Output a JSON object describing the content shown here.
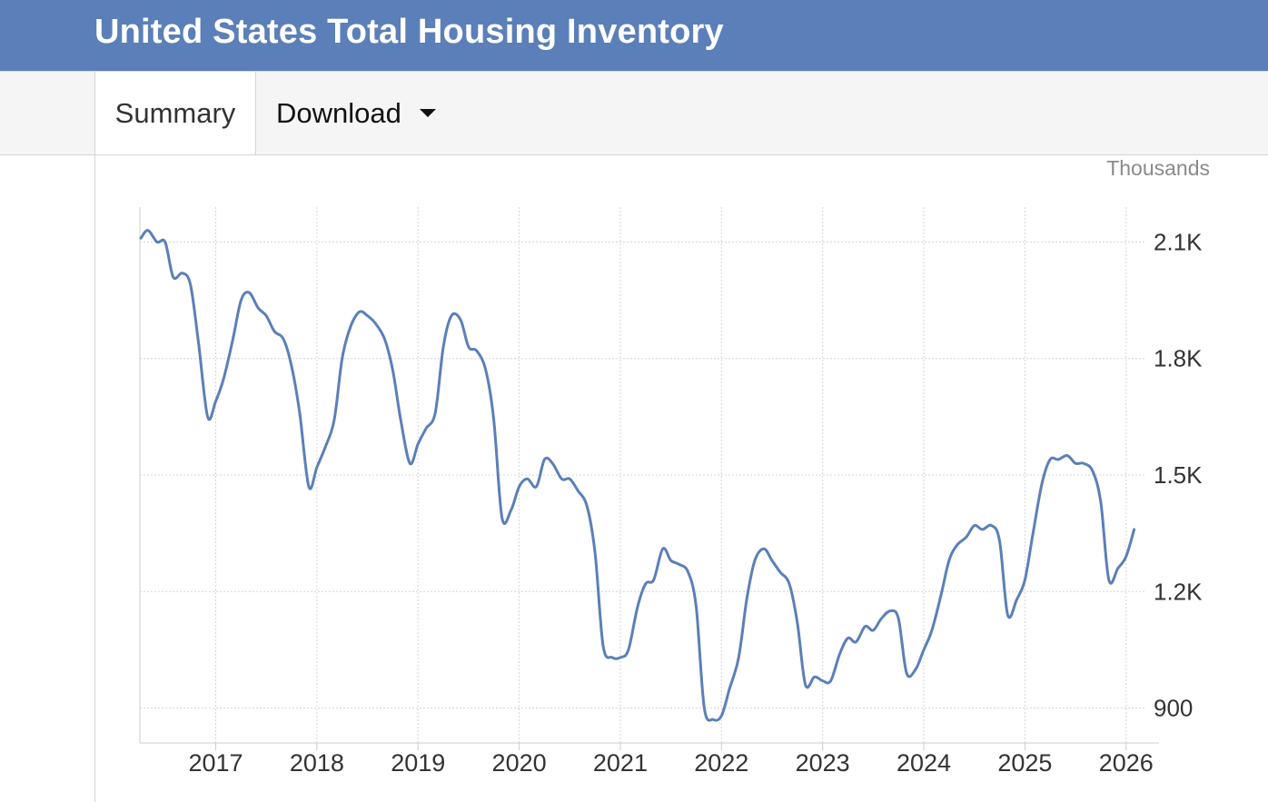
{
  "header": {
    "title": "United States Total Housing Inventory"
  },
  "tabs": {
    "summary_label": "Summary",
    "download_label": "Download"
  },
  "icons": {
    "download_caret": "caret-down-icon"
  },
  "colors": {
    "header_bg": "#5b7fb8",
    "series_line": "#5b7fb8"
  },
  "chart_data": {
    "type": "line",
    "unit_label": "Thousands",
    "y_tick_labels": [
      "2.1K",
      "1.8K",
      "1.5K",
      "1.2K",
      "900"
    ],
    "y_ticks": [
      2100,
      1800,
      1500,
      1200,
      900
    ],
    "x_tick_labels": [
      "2017",
      "2018",
      "2019",
      "2020",
      "2021",
      "2022",
      "2023",
      "2024",
      "2025",
      "2026"
    ],
    "x_ticks": [
      2017,
      2018,
      2019,
      2020,
      2021,
      2022,
      2023,
      2024,
      2025,
      2026
    ],
    "ylim": [
      810,
      2190
    ],
    "xlim": [
      2016.25,
      2026.2
    ],
    "grid": true,
    "series": [
      {
        "points": [
          [
            2016.26,
            2110
          ],
          [
            2016.33,
            2130
          ],
          [
            2016.42,
            2100
          ],
          [
            2016.5,
            2100
          ],
          [
            2016.58,
            2010
          ],
          [
            2016.67,
            2020
          ],
          [
            2016.75,
            1990
          ],
          [
            2016.83,
            1840
          ],
          [
            2016.92,
            1650
          ],
          [
            2017.0,
            1690
          ],
          [
            2017.08,
            1750
          ],
          [
            2017.17,
            1850
          ],
          [
            2017.25,
            1950
          ],
          [
            2017.33,
            1970
          ],
          [
            2017.42,
            1930
          ],
          [
            2017.5,
            1910
          ],
          [
            2017.58,
            1870
          ],
          [
            2017.67,
            1850
          ],
          [
            2017.75,
            1780
          ],
          [
            2017.83,
            1660
          ],
          [
            2017.92,
            1470
          ],
          [
            2018.0,
            1520
          ],
          [
            2018.08,
            1570
          ],
          [
            2018.17,
            1640
          ],
          [
            2018.25,
            1800
          ],
          [
            2018.33,
            1880
          ],
          [
            2018.42,
            1920
          ],
          [
            2018.5,
            1910
          ],
          [
            2018.58,
            1890
          ],
          [
            2018.67,
            1850
          ],
          [
            2018.75,
            1770
          ],
          [
            2018.83,
            1640
          ],
          [
            2018.92,
            1530
          ],
          [
            2019.0,
            1580
          ],
          [
            2019.08,
            1620
          ],
          [
            2019.17,
            1660
          ],
          [
            2019.25,
            1830
          ],
          [
            2019.33,
            1910
          ],
          [
            2019.42,
            1900
          ],
          [
            2019.5,
            1830
          ],
          [
            2019.58,
            1820
          ],
          [
            2019.67,
            1770
          ],
          [
            2019.75,
            1640
          ],
          [
            2019.83,
            1390
          ],
          [
            2019.92,
            1410
          ],
          [
            2020.0,
            1470
          ],
          [
            2020.08,
            1490
          ],
          [
            2020.17,
            1470
          ],
          [
            2020.25,
            1540
          ],
          [
            2020.33,
            1530
          ],
          [
            2020.42,
            1490
          ],
          [
            2020.5,
            1490
          ],
          [
            2020.58,
            1460
          ],
          [
            2020.67,
            1420
          ],
          [
            2020.75,
            1300
          ],
          [
            2020.83,
            1060
          ],
          [
            2020.92,
            1030
          ],
          [
            2021.0,
            1030
          ],
          [
            2021.08,
            1050
          ],
          [
            2021.17,
            1160
          ],
          [
            2021.25,
            1220
          ],
          [
            2021.33,
            1230
          ],
          [
            2021.42,
            1310
          ],
          [
            2021.5,
            1280
          ],
          [
            2021.58,
            1270
          ],
          [
            2021.67,
            1250
          ],
          [
            2021.75,
            1160
          ],
          [
            2021.83,
            900
          ],
          [
            2021.92,
            870
          ],
          [
            2022.0,
            880
          ],
          [
            2022.08,
            950
          ],
          [
            2022.17,
            1030
          ],
          [
            2022.25,
            1180
          ],
          [
            2022.33,
            1280
          ],
          [
            2022.42,
            1310
          ],
          [
            2022.5,
            1280
          ],
          [
            2022.58,
            1250
          ],
          [
            2022.67,
            1220
          ],
          [
            2022.75,
            1120
          ],
          [
            2022.83,
            960
          ],
          [
            2022.92,
            980
          ],
          [
            2023.0,
            970
          ],
          [
            2023.08,
            970
          ],
          [
            2023.17,
            1040
          ],
          [
            2023.25,
            1080
          ],
          [
            2023.33,
            1070
          ],
          [
            2023.42,
            1110
          ],
          [
            2023.5,
            1100
          ],
          [
            2023.58,
            1130
          ],
          [
            2023.67,
            1150
          ],
          [
            2023.75,
            1130
          ],
          [
            2023.83,
            990
          ],
          [
            2023.92,
            1000
          ],
          [
            2024.0,
            1050
          ],
          [
            2024.08,
            1100
          ],
          [
            2024.17,
            1190
          ],
          [
            2024.25,
            1280
          ],
          [
            2024.33,
            1320
          ],
          [
            2024.42,
            1340
          ],
          [
            2024.5,
            1370
          ],
          [
            2024.58,
            1360
          ],
          [
            2024.67,
            1370
          ],
          [
            2024.75,
            1330
          ],
          [
            2024.83,
            1140
          ],
          [
            2024.92,
            1180
          ],
          [
            2025.0,
            1230
          ],
          [
            2025.08,
            1350
          ],
          [
            2025.17,
            1480
          ],
          [
            2025.25,
            1540
          ],
          [
            2025.33,
            1540
          ],
          [
            2025.42,
            1550
          ],
          [
            2025.5,
            1530
          ],
          [
            2025.58,
            1530
          ],
          [
            2025.67,
            1510
          ],
          [
            2025.75,
            1430
          ],
          [
            2025.83,
            1230
          ],
          [
            2025.92,
            1260
          ],
          [
            2026.0,
            1290
          ],
          [
            2026.08,
            1360
          ]
        ]
      }
    ]
  }
}
